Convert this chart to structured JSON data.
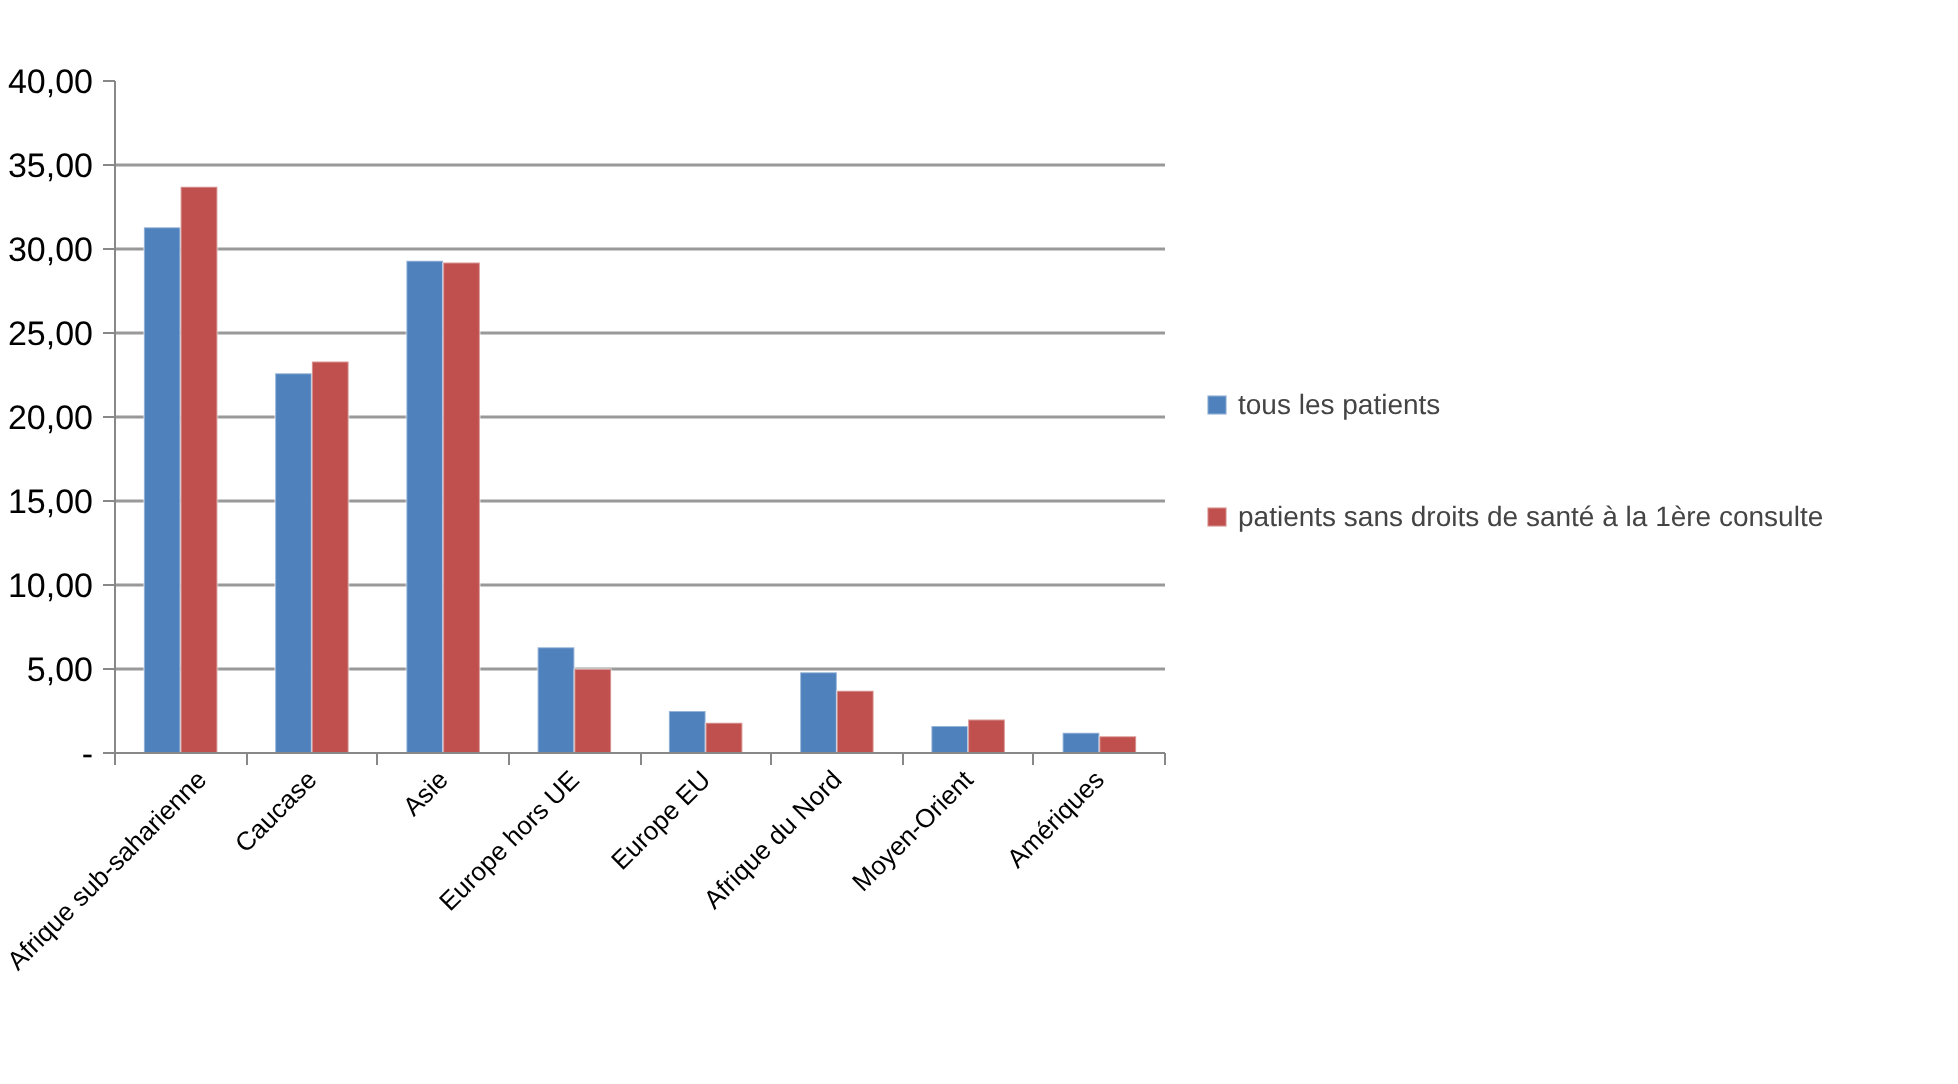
{
  "chart_data": {
    "type": "bar",
    "categories": [
      "Afrique sub-saharienne",
      "Caucase",
      "Asie",
      "Europe hors UE",
      "Europe EU",
      "Afrique du Nord",
      "Moyen-Orient",
      "Amériques"
    ],
    "series": [
      {
        "name": "tous les patients",
        "color": "#4f81bd",
        "values": [
          31.3,
          22.6,
          29.3,
          6.3,
          2.5,
          4.8,
          1.6,
          1.2
        ]
      },
      {
        "name": "patients sans droits de santé à la 1ère consulte",
        "color": "#c0504d",
        "values": [
          33.7,
          23.3,
          29.2,
          5.0,
          1.8,
          3.7,
          2.0,
          1.0
        ]
      }
    ],
    "ylim": [
      0,
      40
    ],
    "yticks": [
      {
        "value": 0,
        "label": "-"
      },
      {
        "value": 5,
        "label": "5,00"
      },
      {
        "value": 10,
        "label": "10,00"
      },
      {
        "value": 15,
        "label": "15,00"
      },
      {
        "value": 20,
        "label": "20,00"
      },
      {
        "value": 25,
        "label": "25,00"
      },
      {
        "value": 30,
        "label": "30,00"
      },
      {
        "value": 35,
        "label": "35,00"
      },
      {
        "value": 40,
        "label": "40,00"
      }
    ],
    "grid": "y",
    "legend": "right"
  }
}
